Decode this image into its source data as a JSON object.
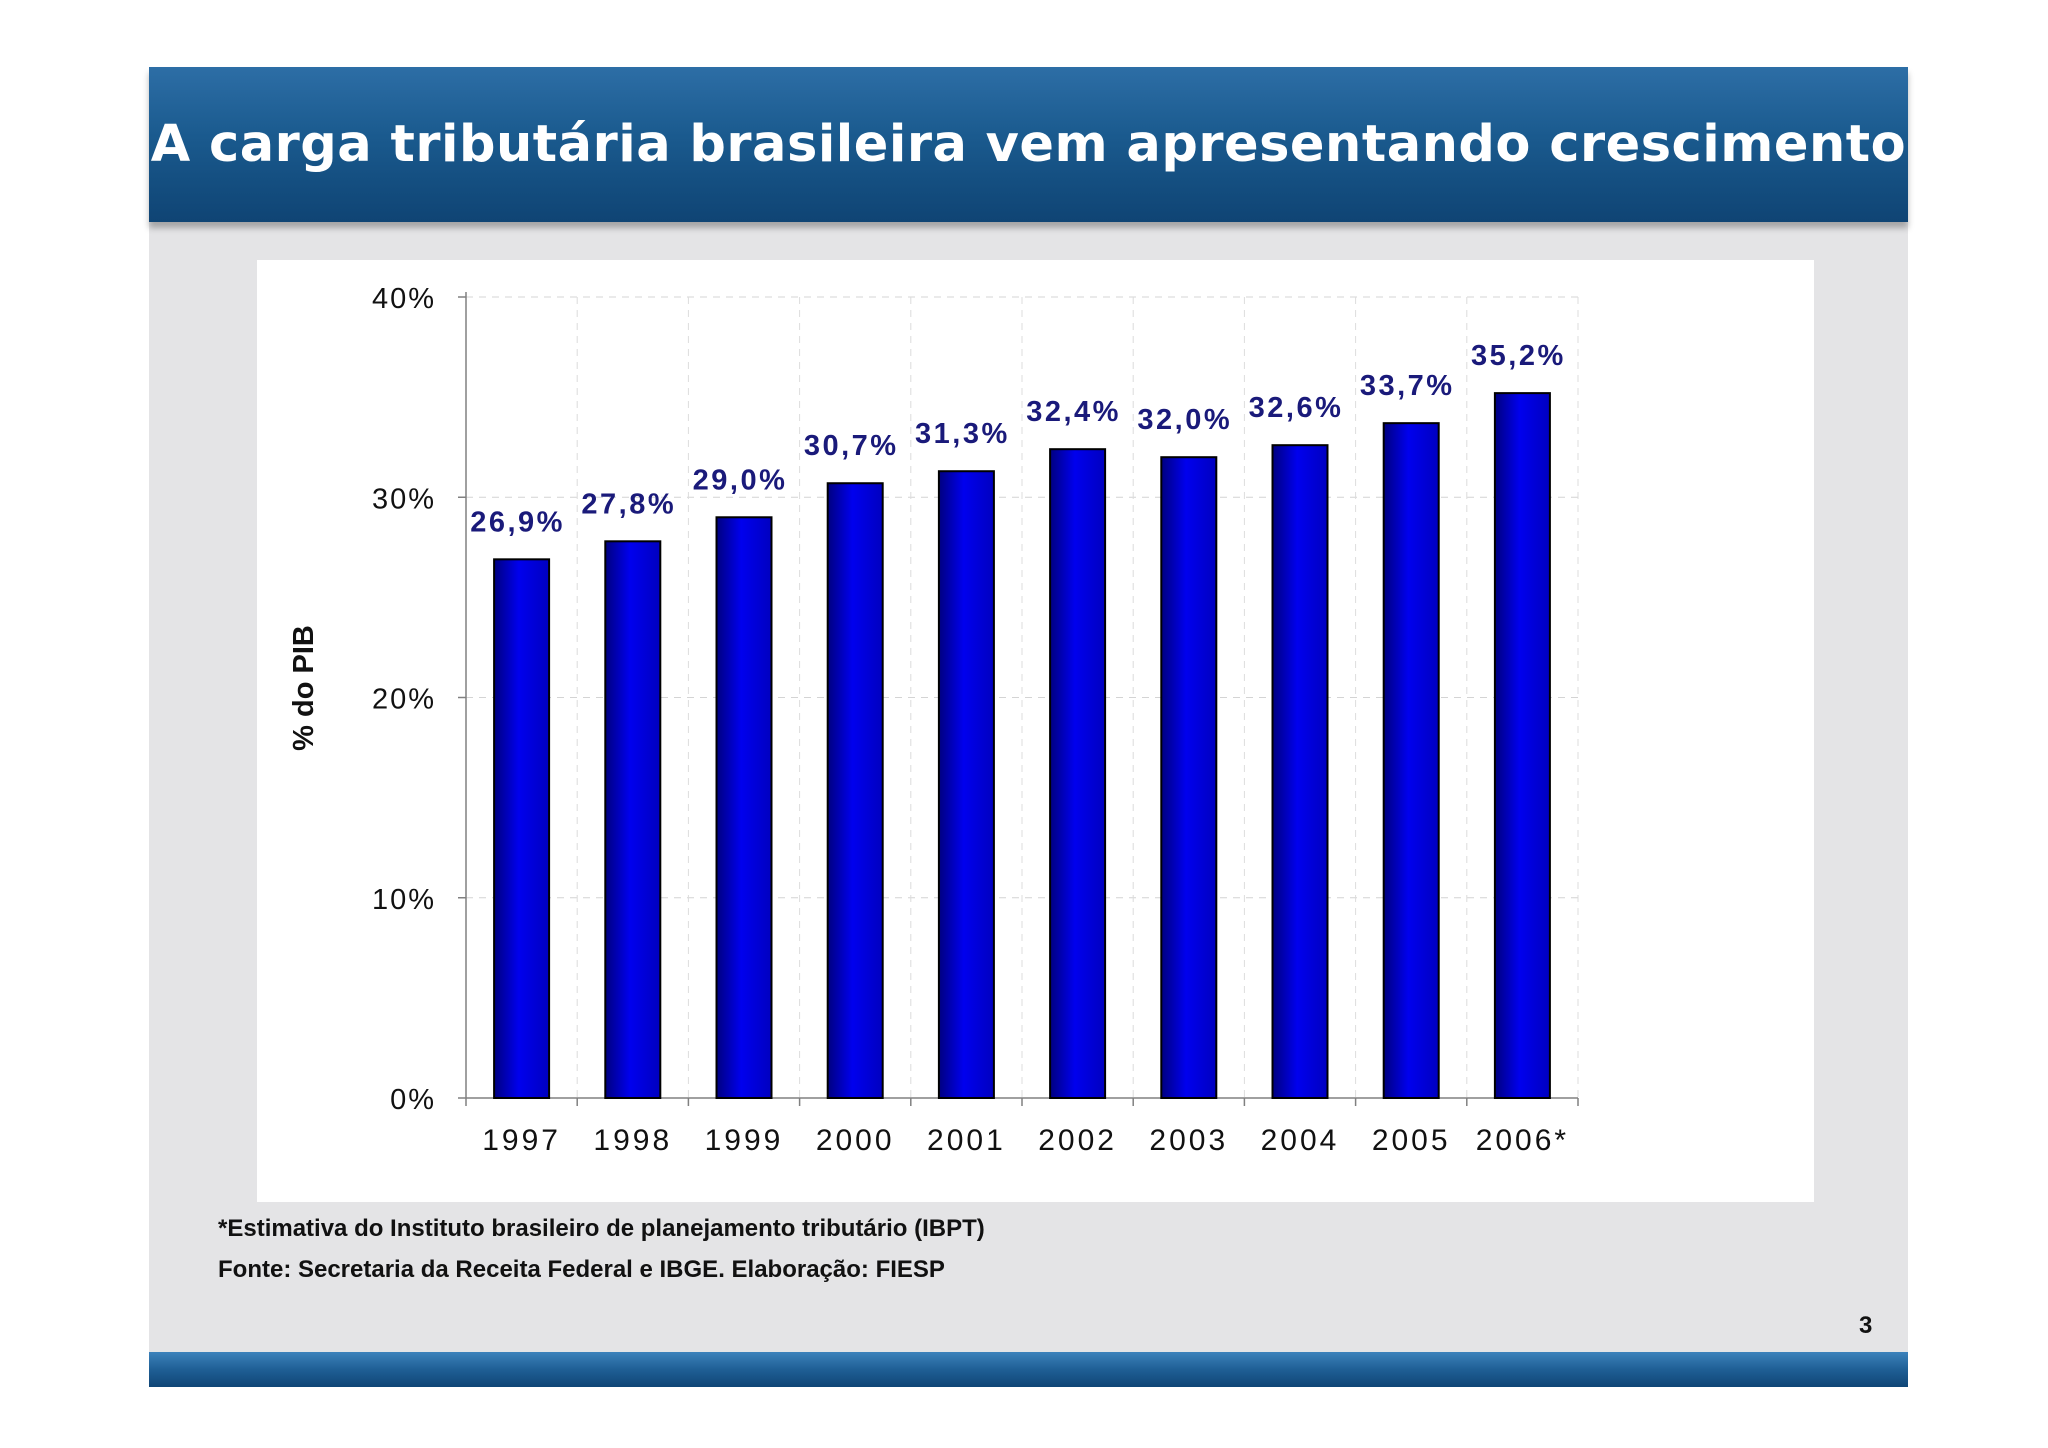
{
  "slide": {
    "title": "A carga tributária brasileira vem apresentando crescimento",
    "footnote_1": "*Estimativa do Instituto brasileiro de planejamento tributário (IBPT)",
    "footnote_2": "Fonte: Secretaria da Receita Federal e IBGE. Elaboração: FIESP",
    "page_number": "3"
  },
  "colors": {
    "header": "#1a5a8e",
    "bar": "#0000e6",
    "bar_dark": "#000080",
    "label": "#1a1a7a",
    "background": "#e4e4e6"
  },
  "chart_data": {
    "type": "bar",
    "title": "",
    "xlabel": "",
    "ylabel": "% do PIB",
    "ylim": [
      0,
      40
    ],
    "yticks": [
      0,
      10,
      20,
      30,
      40
    ],
    "ytick_labels": [
      "0%",
      "10%",
      "20%",
      "30%",
      "40%"
    ],
    "grid": true,
    "categories": [
      "1997",
      "1998",
      "1999",
      "2000",
      "2001",
      "2002",
      "2003",
      "2004",
      "2005",
      "2006*"
    ],
    "values": [
      26.9,
      27.8,
      29.0,
      30.7,
      31.3,
      32.4,
      32.0,
      32.6,
      33.7,
      35.2
    ],
    "data_labels": [
      "26,9%",
      "27,8%",
      "29,0%",
      "30,7%",
      "31,3%",
      "32,4%",
      "32,0%",
      "32,6%",
      "33,7%",
      "35,2%"
    ]
  }
}
